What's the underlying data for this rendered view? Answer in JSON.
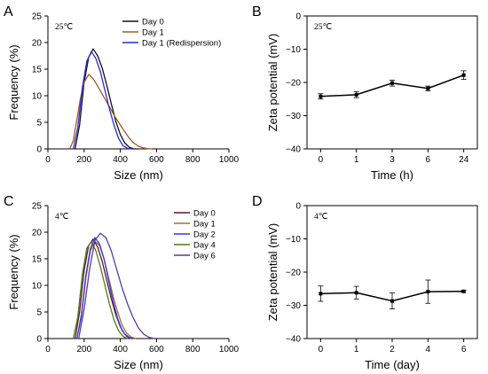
{
  "chart_data": [
    {
      "panel": "A",
      "type": "line",
      "annotation": "25℃",
      "xlabel": "Size (nm)",
      "ylabel": "Frequency (%)",
      "xlim": [
        0,
        1000
      ],
      "ylim": [
        0,
        25
      ],
      "xticks": [
        0,
        200,
        400,
        600,
        800,
        1000
      ],
      "yticks": [
        0,
        5,
        10,
        15,
        20,
        25
      ],
      "legend_position": "top-right",
      "series": [
        {
          "name": "Day 0",
          "color": "#111111",
          "x": [
            150,
            175,
            200,
            225,
            250,
            275,
            300,
            325,
            350,
            375,
            400,
            425,
            450,
            475,
            500
          ],
          "y": [
            0,
            4.5,
            12.5,
            17.2,
            18.8,
            17.5,
            15.2,
            12.0,
            8.5,
            5.2,
            2.7,
            1.1,
            0.3,
            0,
            0
          ]
        },
        {
          "name": "Day 1",
          "color": "#9b5a2a",
          "x": [
            120,
            140,
            160,
            180,
            200,
            225,
            250,
            275,
            300,
            325,
            350,
            375,
            400,
            425,
            450,
            475,
            500,
            525,
            550,
            575
          ],
          "y": [
            0,
            1.5,
            5.5,
            9.5,
            12.5,
            14.0,
            13.2,
            11.8,
            10.3,
            8.8,
            7.3,
            5.8,
            4.5,
            3.2,
            2.0,
            1.1,
            0.5,
            0.2,
            0.05,
            0
          ]
        },
        {
          "name": "Day 1 (Redispersion)",
          "color": "#2b2bd6",
          "x": [
            140,
            165,
            190,
            215,
            240,
            265,
            290,
            315,
            340,
            365,
            390,
            415,
            440,
            465
          ],
          "y": [
            0,
            4.0,
            11.5,
            16.5,
            18.3,
            17.0,
            14.5,
            11.0,
            7.5,
            4.5,
            2.0,
            0.6,
            0.1,
            0
          ]
        }
      ]
    },
    {
      "panel": "B",
      "type": "line",
      "annotation": "25℃",
      "xlabel": "Time (h)",
      "ylabel": "Zeta potential (mV)",
      "ylim": [
        -40,
        0
      ],
      "yticks": [
        0,
        -10,
        -20,
        -30,
        -40
      ],
      "categories": [
        "0",
        "1",
        "3",
        "6",
        "24"
      ],
      "series": [
        {
          "values": [
            -24.2,
            -23.7,
            -20.2,
            -21.8,
            -17.8
          ],
          "errors": [
            0.8,
            0.9,
            0.9,
            0.7,
            1.3
          ]
        }
      ]
    },
    {
      "panel": "C",
      "type": "line",
      "annotation": "4℃",
      "xlabel": "Size (nm)",
      "ylabel": "Frequency (%)",
      "xlim": [
        0,
        1000
      ],
      "ylim": [
        0,
        25
      ],
      "xticks": [
        0,
        200,
        400,
        600,
        800,
        1000
      ],
      "yticks": [
        0,
        5,
        10,
        15,
        20,
        25
      ],
      "legend_position": "top-right",
      "series": [
        {
          "name": "Day 0",
          "color": "#6b0f2a",
          "x": [
            150,
            175,
            200,
            225,
            250,
            275,
            300,
            325,
            350,
            375,
            400,
            425,
            450,
            475
          ],
          "y": [
            0,
            5.0,
            12.8,
            17.5,
            18.7,
            17.2,
            14.5,
            11.0,
            7.5,
            4.5,
            2.2,
            0.8,
            0.2,
            0
          ]
        },
        {
          "name": "Day 1",
          "color": "#a0703a",
          "x": [
            160,
            185,
            210,
            235,
            260,
            285,
            310,
            335,
            360,
            385,
            410,
            435,
            460,
            485
          ],
          "y": [
            0,
            4.0,
            11.5,
            16.5,
            18.3,
            17.5,
            15.0,
            11.5,
            8.0,
            5.0,
            2.5,
            1.0,
            0.3,
            0
          ]
        },
        {
          "name": "Day 2",
          "color": "#2a3fe0",
          "x": [
            160,
            185,
            210,
            235,
            260,
            285,
            310,
            335,
            360,
            385,
            410,
            435,
            460
          ],
          "y": [
            0,
            4.5,
            12.0,
            17.0,
            19.0,
            17.8,
            15.0,
            11.0,
            7.0,
            3.8,
            1.5,
            0.4,
            0
          ]
        },
        {
          "name": "Day 4",
          "color": "#4c7a1f",
          "x": [
            140,
            165,
            190,
            215,
            240,
            265,
            290,
            315,
            340,
            365,
            390,
            415,
            440
          ],
          "y": [
            0,
            4.0,
            12.0,
            17.0,
            18.2,
            16.5,
            13.5,
            10.0,
            6.5,
            3.5,
            1.5,
            0.4,
            0
          ]
        },
        {
          "name": "Day 6",
          "color": "#5a3a9c",
          "x": [
            170,
            200,
            230,
            260,
            290,
            320,
            350,
            380,
            410,
            440,
            470,
            500,
            530,
            560,
            590
          ],
          "y": [
            0,
            5.5,
            13.0,
            18.5,
            19.8,
            19.0,
            16.5,
            13.0,
            9.5,
            6.5,
            4.0,
            2.0,
            0.8,
            0.2,
            0
          ]
        }
      ]
    },
    {
      "panel": "D",
      "type": "line",
      "annotation": "4℃",
      "xlabel": "Time (day)",
      "ylabel": "Zeta potential (mV)",
      "ylim": [
        -40,
        0
      ],
      "yticks": [
        0,
        -10,
        -20,
        -30,
        -40
      ],
      "categories": [
        "0",
        "1",
        "2",
        "4",
        "6"
      ],
      "series": [
        {
          "values": [
            -26.5,
            -26.2,
            -28.7,
            -25.9,
            -25.8
          ],
          "errors": [
            2.3,
            1.9,
            2.4,
            3.5,
            0.3
          ]
        }
      ]
    }
  ]
}
